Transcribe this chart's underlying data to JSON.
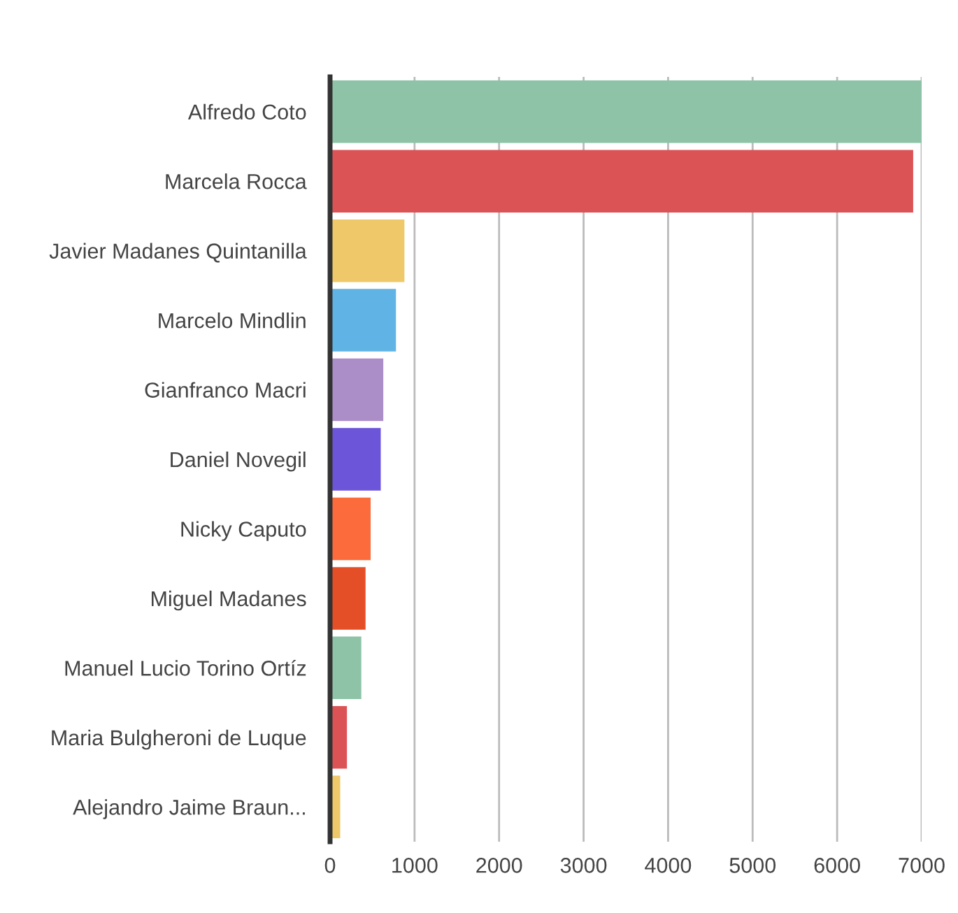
{
  "chart_data": {
    "type": "bar",
    "orientation": "horizontal",
    "categories": [
      "Alfredo Coto",
      "Marcela Rocca",
      "Javier Madanes Quintanilla",
      "Marcelo Mindlin",
      "Gianfranco Macri",
      "Daniel Novegil",
      "Nicky Caputo",
      "Miguel Madanes",
      "Manuel Lucio Torino Ortíz",
      "Maria Bulgheroni de Luque",
      "Alejandro Jaime Braun..."
    ],
    "values": [
      7000,
      6900,
      880,
      780,
      630,
      600,
      480,
      420,
      370,
      200,
      120
    ],
    "colors": [
      "#8ec3a7",
      "#dc5356",
      "#efc86a",
      "#5fb4e5",
      "#ab8ec7",
      "#6c55d9",
      "#fc6b3c",
      "#e54f28",
      "#8ec3a7",
      "#dc5356",
      "#efc86a"
    ],
    "xlim": [
      0,
      7000
    ],
    "xticks": [
      0,
      1000,
      2000,
      3000,
      4000,
      5000,
      6000,
      7000
    ],
    "grid": "x"
  }
}
